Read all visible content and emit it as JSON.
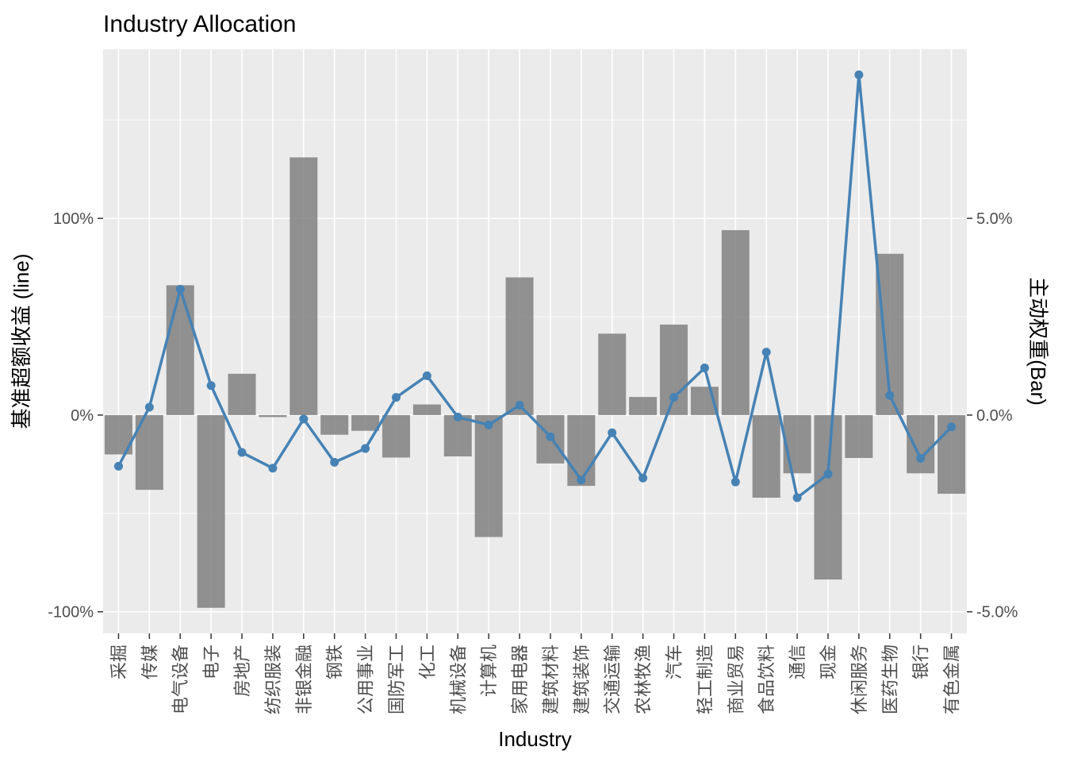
{
  "chart_data": {
    "type": "bar+line",
    "title": "Industry Allocation",
    "xlabel": "Industry",
    "ylabel_left": "基准超额收益 (line)",
    "ylabel_right": "主动权重(Bar)",
    "categories": [
      "采掘",
      "传媒",
      "电气设备",
      "电子",
      "房地产",
      "纺织服装",
      "非银金融",
      "钢铁",
      "公用事业",
      "国防军工",
      "化工",
      "机械设备",
      "计算机",
      "家用电器",
      "建筑材料",
      "建筑装饰",
      "交通运输",
      "农林牧渔",
      "汽车",
      "轻工制造",
      "商业贸易",
      "食品饮料",
      "通信",
      "现金",
      "休闲服务",
      "医药生物",
      "银行",
      "有色金属"
    ],
    "left_axis": {
      "range": [
        -111,
        186
      ],
      "ticks": [
        -100,
        0,
        100
      ],
      "tick_labels": [
        "-100%",
        "0%",
        "100%"
      ]
    },
    "right_axis": {
      "range": [
        -5.55,
        9.3
      ],
      "ticks": [
        -5,
        0,
        5
      ],
      "tick_labels": [
        "-5.0%",
        "0.0%",
        "5.0%"
      ]
    },
    "series": [
      {
        "kind": "bar",
        "axis": "right",
        "color": "#808080",
        "values": [
          -1.0,
          -1.9,
          3.3,
          -4.9,
          1.05,
          -0.05,
          6.55,
          -0.5,
          -0.4,
          -1.08,
          0.27,
          -1.05,
          -3.1,
          3.5,
          -1.23,
          -1.8,
          2.07,
          0.46,
          2.3,
          0.72,
          4.7,
          -2.1,
          -1.48,
          -4.18,
          -1.09,
          4.1,
          -1.48,
          -2.0
        ]
      },
      {
        "kind": "line",
        "axis": "left",
        "color": "#4682b4",
        "values": [
          -26,
          4,
          64,
          15,
          -19,
          -27,
          -2,
          -24,
          -17,
          9,
          20,
          -1,
          -5,
          5,
          -11,
          -33,
          -9,
          -32,
          9,
          24,
          -34,
          32,
          -42,
          -30,
          173,
          10,
          -22,
          -6
        ]
      }
    ],
    "grid": true,
    "legend": "none"
  }
}
